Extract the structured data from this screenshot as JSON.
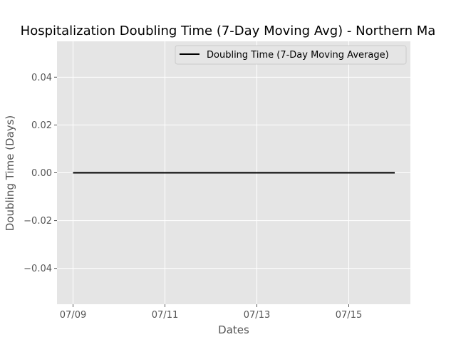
{
  "chart_data": {
    "type": "line",
    "title": "Hospitalization Doubling Time (7-Day Moving Avg) - Northern Ma",
    "xlabel": "Dates",
    "ylabel": "Doubling Time (Days)",
    "x": [
      "07/09",
      "07/10",
      "07/11",
      "07/12",
      "07/13",
      "07/14",
      "07/15",
      "07/16"
    ],
    "x_tick_labels": [
      "07/09",
      "07/11",
      "07/13",
      "07/15"
    ],
    "series": [
      {
        "name": "Doubling Time (7-Day Moving Average)",
        "color": "#000000",
        "values": [
          0,
          0,
          0,
          0,
          0,
          0,
          0,
          0
        ]
      }
    ],
    "ylim": [
      -0.055,
      0.055
    ],
    "y_ticks": [
      -0.04,
      -0.02,
      0.0,
      0.02,
      0.04
    ],
    "y_tick_labels": [
      "−0.04",
      "−0.02",
      "0.00",
      "0.02",
      "0.04"
    ],
    "grid": true,
    "legend_position": "top-right",
    "plot_background": "#e5e5e5",
    "grid_color": "#ffffff"
  }
}
